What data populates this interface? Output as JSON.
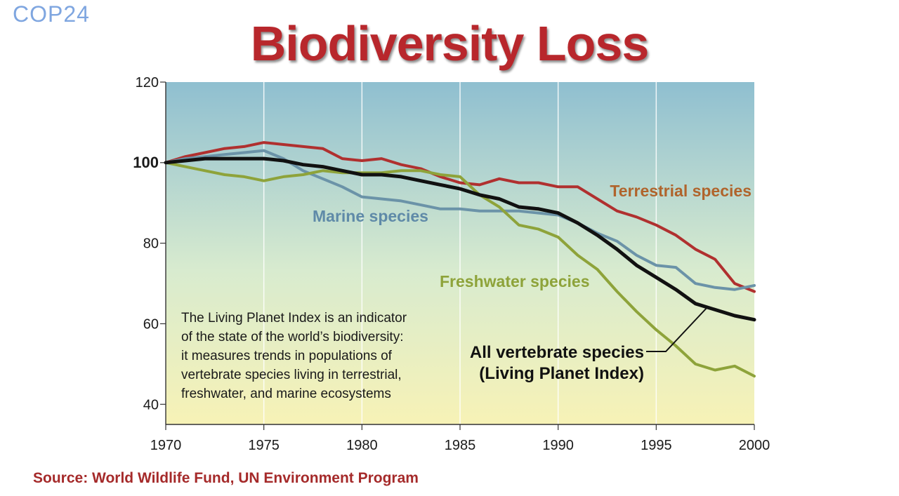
{
  "logo": "COP24",
  "title": "Biodiversity Loss",
  "source": "Source: World Wildlife Fund, UN Environment Program",
  "chart_data": {
    "type": "line",
    "title": "Biodiversity Loss",
    "xlim": [
      1970,
      2000
    ],
    "ylim": [
      35,
      120
    ],
    "x_ticks": [
      "1970",
      "1975",
      "1980",
      "1985",
      "1990",
      "1995",
      "2000"
    ],
    "y_ticks": [
      "120",
      "100",
      "80",
      "60",
      "40"
    ],
    "grid": true,
    "background": {
      "top": "#8fbfd0",
      "bottom": "#f7f2b6"
    },
    "x": [
      1970,
      1971,
      1972,
      1973,
      1974,
      1975,
      1976,
      1977,
      1978,
      1979,
      1980,
      1981,
      1982,
      1983,
      1984,
      1985,
      1986,
      1987,
      1988,
      1989,
      1990,
      1991,
      1992,
      1993,
      1994,
      1995,
      1996,
      1997,
      1998,
      1999,
      2000
    ],
    "series": [
      {
        "name": "Terrestrial species",
        "color": "#b0302f",
        "label_color": "#b0642c",
        "values": [
          100,
          101.5,
          102.5,
          103.5,
          104,
          105,
          104.5,
          104,
          103.5,
          101,
          100.5,
          101,
          99.5,
          98.5,
          96.5,
          95,
          94.5,
          96,
          95,
          95,
          94,
          94,
          91,
          88,
          86.5,
          84.5,
          82,
          78.5,
          76,
          70,
          68
        ]
      },
      {
        "name": "Marine species",
        "color": "#6b93a8",
        "label_color": "#5f8aa8",
        "values": [
          100,
          101,
          101.5,
          102,
          102.5,
          103,
          101,
          98,
          96,
          94,
          91.5,
          91,
          90.5,
          89.5,
          88.5,
          88.5,
          88,
          88,
          88,
          87.5,
          87,
          85,
          82.5,
          80.5,
          77,
          74.5,
          74,
          70,
          69,
          68.5,
          69.5
        ]
      },
      {
        "name": "Freshwater species",
        "color": "#8ea33a",
        "label_color": "#8ea33a",
        "values": [
          100,
          99,
          98,
          97,
          96.5,
          95.5,
          96.5,
          97,
          98,
          97.5,
          97.5,
          97.5,
          98,
          98,
          97,
          96.5,
          92,
          89,
          84.5,
          83.5,
          81.5,
          77,
          73.5,
          68,
          63,
          58.5,
          54.5,
          50,
          48.5,
          49.5,
          47
        ]
      },
      {
        "name": "All vertebrate species (Living Planet Index)",
        "color": "#111111",
        "label_color": "#111111",
        "values": [
          100,
          100.5,
          101,
          101,
          101,
          101,
          100.5,
          99.5,
          99,
          98,
          97,
          97,
          96.5,
          95.5,
          94.5,
          93.5,
          92,
          91,
          89,
          88.5,
          87.5,
          85,
          82,
          78.5,
          74.5,
          71.5,
          68.5,
          65,
          63.5,
          62,
          61
        ]
      }
    ],
    "annotations": {
      "lpi_line1": "All vertebrate species",
      "lpi_line2": "(Living Planet Index)",
      "note_lines": [
        "The Living Planet Index is an indicator",
        "of the state of the world’s biodiversity:",
        "it measures trends in populations of",
        "vertebrate species living in terrestrial,",
        "freshwater, and marine ecosystems"
      ]
    }
  }
}
